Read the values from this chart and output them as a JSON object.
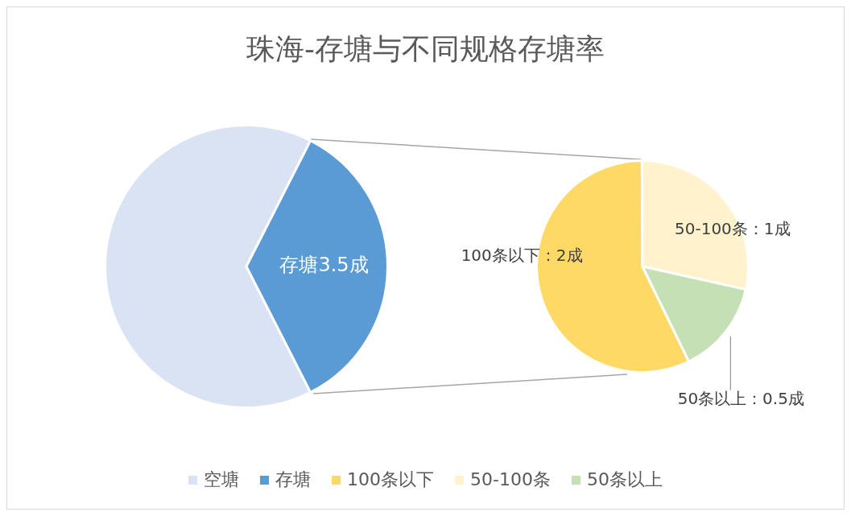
{
  "chart_data": [
    {
      "type": "pie",
      "title": "珠海-存塘与不同规格存塘率",
      "categories": [
        "空塘",
        "存塘"
      ],
      "values": [
        6.5,
        3.5
      ],
      "colors": [
        "#dae3f3",
        "#5b9bd5"
      ],
      "value_labels": [
        null,
        "存塘3.5成"
      ],
      "legend": "bottom"
    },
    {
      "type": "pie",
      "categories": [
        "100条以下",
        "50-100条",
        "50条以上"
      ],
      "values": [
        2,
        1,
        0.5
      ],
      "colors": [
        "#ffd966",
        "#fff2cc",
        "#c5e0b4"
      ],
      "value_labels": [
        "100条以下：2成",
        "50-100条：1成",
        "50条以上：0.5成"
      ],
      "legend": "bottom"
    }
  ]
}
